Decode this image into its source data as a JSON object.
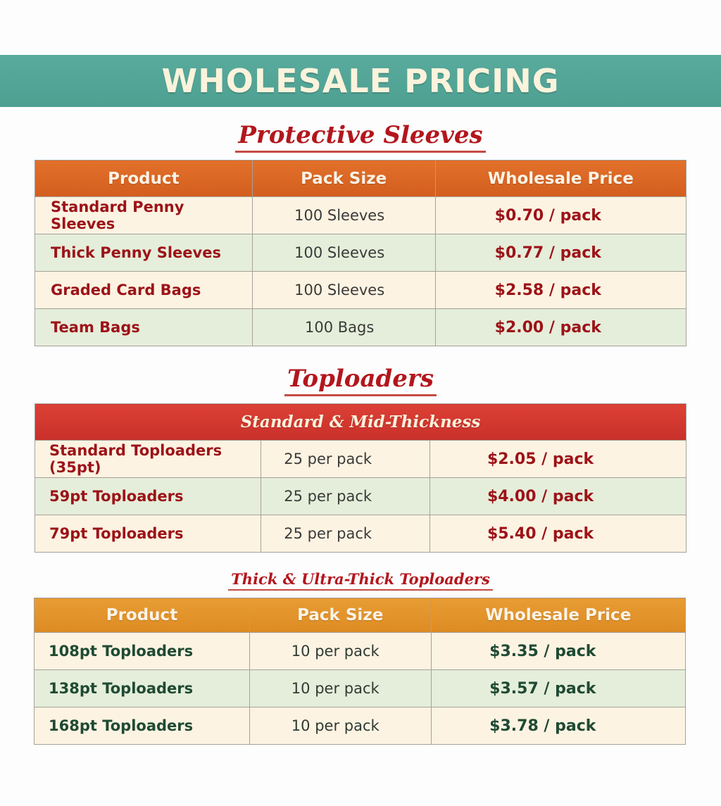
{
  "header": {
    "title": "WHOLESALE PRICING"
  },
  "protective_sleeves": {
    "title": "Protective Sleeves",
    "columns": [
      "Product",
      "Pack Size",
      "Wholesale Price"
    ],
    "rows": [
      {
        "product": "Standard Penny Sleeves",
        "pack_size": "100 Sleeves",
        "price": "$0.70 / pack"
      },
      {
        "product": "Thick Penny Sleeves",
        "pack_size": "100 Sleeves",
        "price": "$0.77 / pack"
      },
      {
        "product": "Graded Card Bags",
        "pack_size": "100 Sleeves",
        "price": "$2.58 / pack"
      },
      {
        "product": "Team Bags",
        "pack_size": "100 Bags",
        "price": "$2.00 / pack"
      }
    ]
  },
  "toploaders": {
    "title": "Toploaders",
    "standard": {
      "title": "Standard & Mid-Thickness",
      "rows": [
        {
          "product": "Standard Toploaders (35pt)",
          "pack_size": "25 per pack",
          "price": "$2.05 / pack"
        },
        {
          "product": "59pt Toploaders",
          "pack_size": "25 per pack",
          "price": "$4.00 / pack"
        },
        {
          "product": "79pt Toploaders",
          "pack_size": "25 per pack",
          "price": "$5.40 / pack"
        }
      ]
    },
    "thick": {
      "title": "Thick & Ultra-Thick Toploaders",
      "columns": [
        "Product",
        "Pack Size",
        "Wholesale Price"
      ],
      "rows": [
        {
          "product": "108pt Toploaders",
          "pack_size": "10 per pack",
          "price": "$3.35 / pack"
        },
        {
          "product": "138pt Toploaders",
          "pack_size": "10 per pack",
          "price": "$3.57 / pack"
        },
        {
          "product": "168pt Toploaders",
          "pack_size": "10 per pack",
          "price": "$3.78 / pack"
        }
      ]
    }
  },
  "colors": {
    "banner": "#52a395",
    "sleeves_header": "#d96524",
    "standard_bar": "#d2382f",
    "thick_header": "#e29429",
    "row_cream": "#fdf3e2",
    "row_green": "#e5eeda",
    "title_red": "#b3161d"
  }
}
